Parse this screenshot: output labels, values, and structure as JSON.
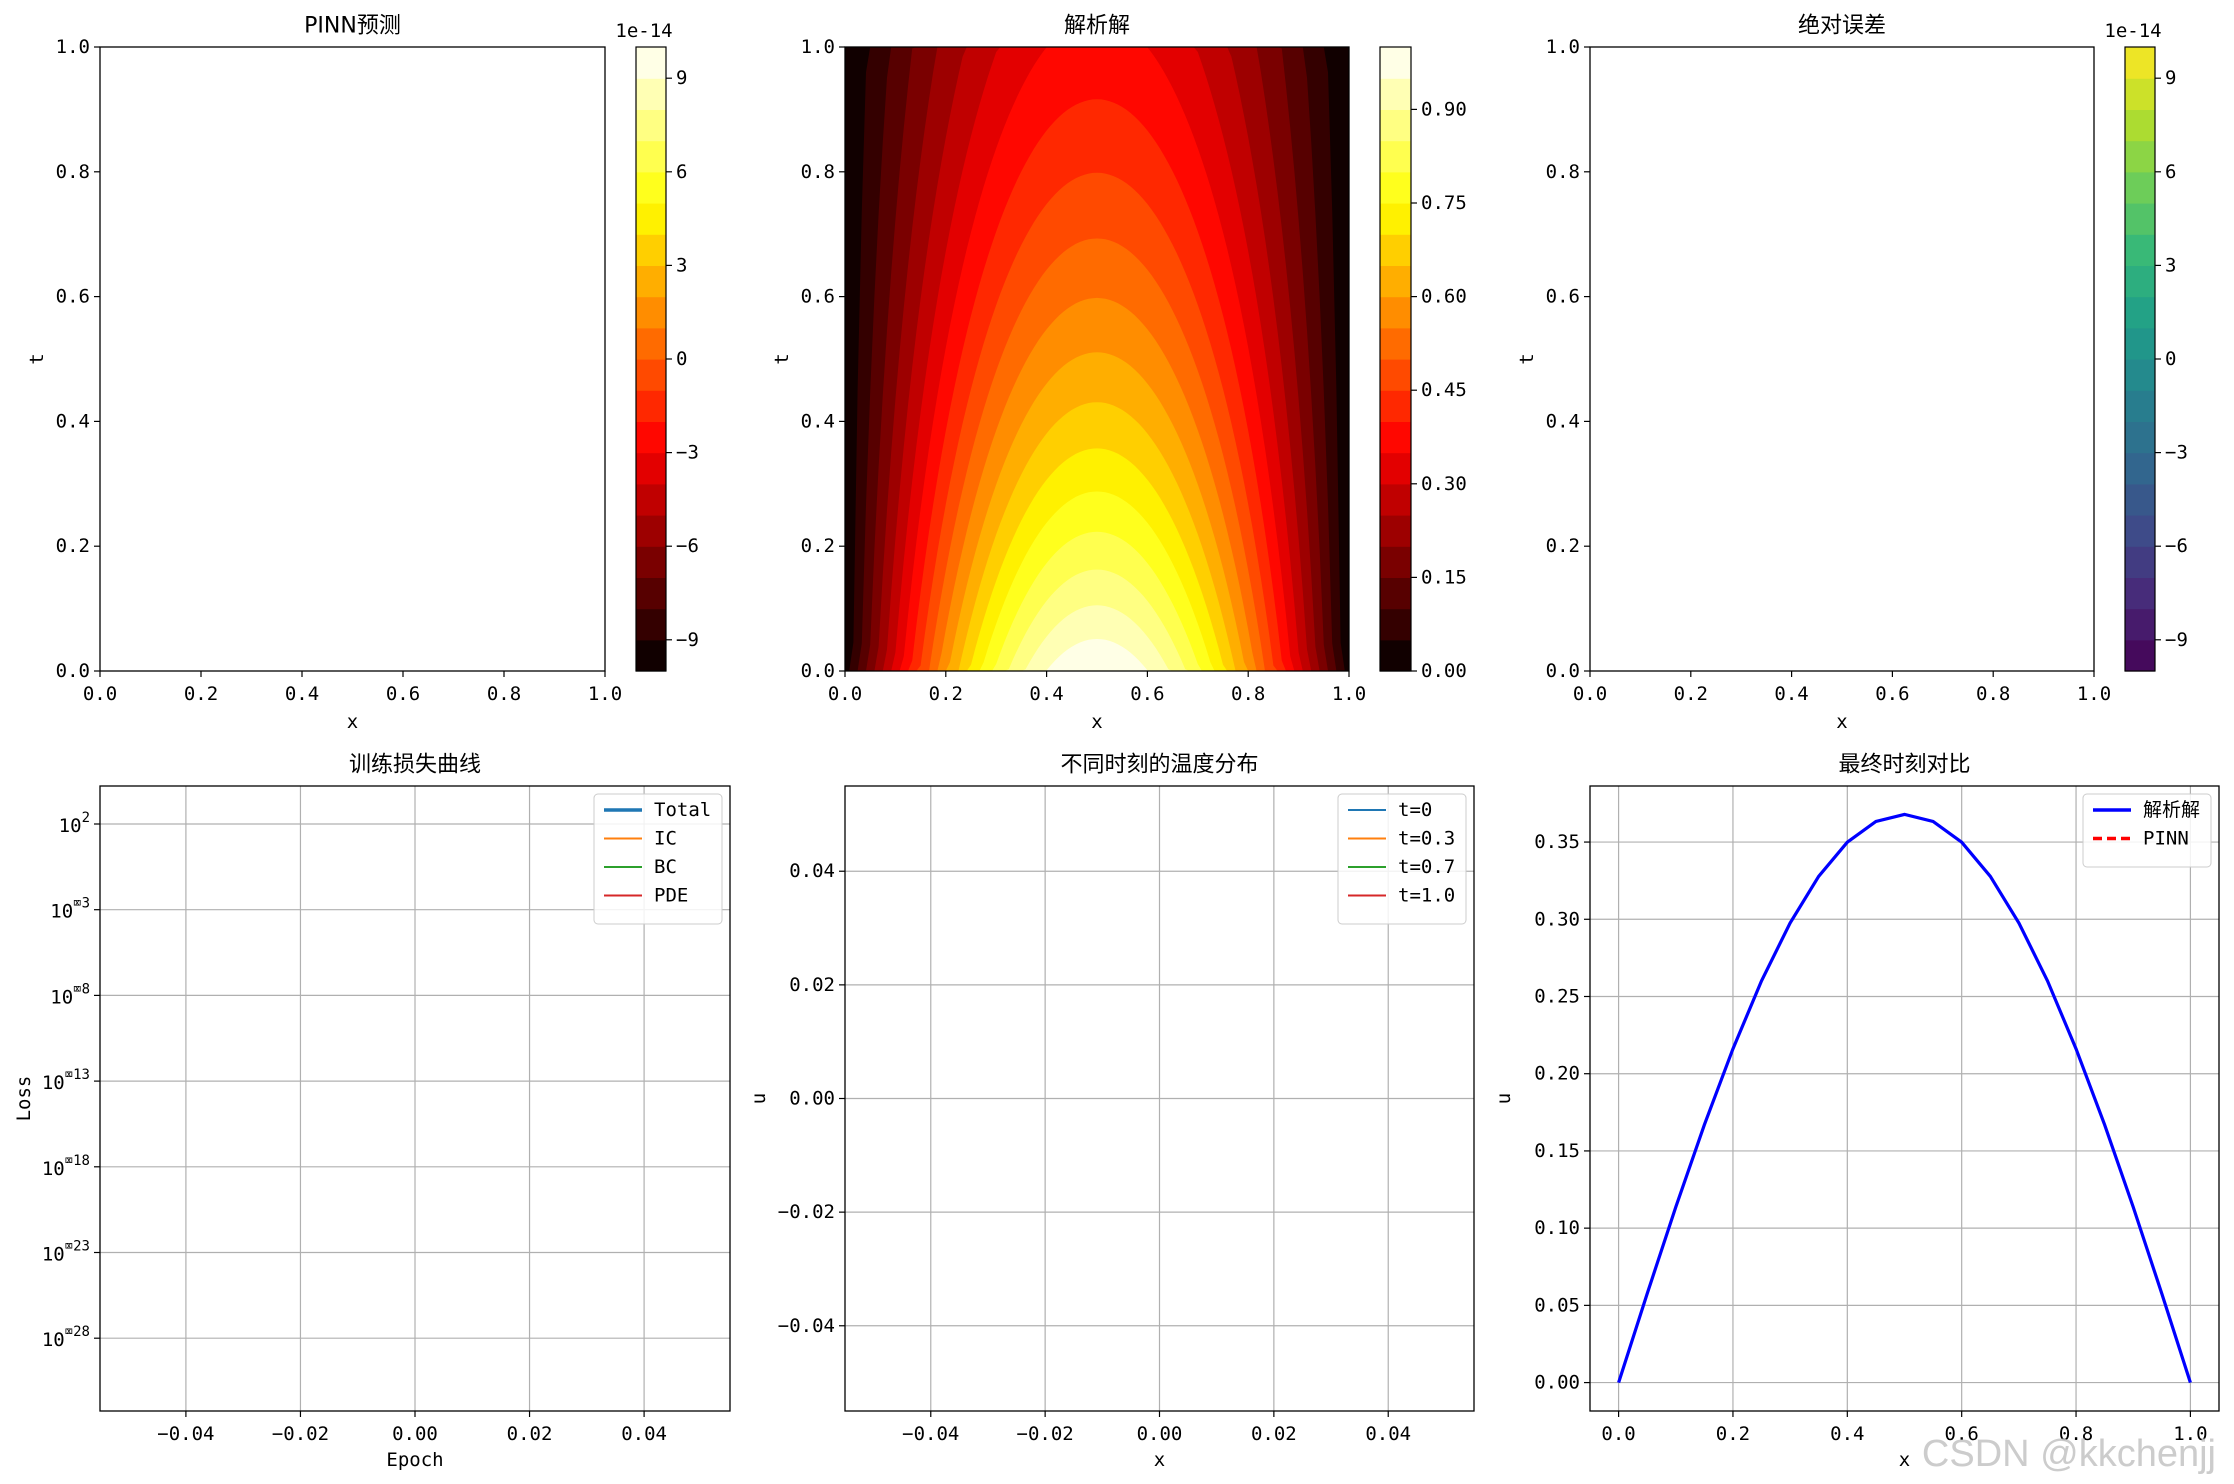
{
  "chart_data": [
    {
      "type": "heatmap",
      "title": "PINN预测",
      "xlabel": "x",
      "ylabel": "t",
      "xlim": [
        0,
        1
      ],
      "ylim": [
        0,
        1
      ],
      "xticks": [
        "0.0",
        "0.2",
        "0.4",
        "0.6",
        "0.8",
        "1.0"
      ],
      "yticks": [
        "0.0",
        "0.2",
        "0.4",
        "0.6",
        "0.8",
        "1.0"
      ],
      "colormap": "hot",
      "colorbar": {
        "offset": "1e-14",
        "ticks": [
          "9",
          "6",
          "3",
          "0",
          "−3",
          "−6",
          "−9"
        ],
        "tick_values": [
          9,
          6,
          3,
          0,
          -3,
          -6,
          -9
        ],
        "range": [
          -10,
          10
        ],
        "levels": 20
      },
      "field": "empty"
    },
    {
      "type": "heatmap",
      "title": "解析解",
      "xlabel": "x",
      "ylabel": "t",
      "xlim": [
        0,
        1
      ],
      "ylim": [
        0,
        1
      ],
      "xticks": [
        "0.0",
        "0.2",
        "0.4",
        "0.6",
        "0.8",
        "1.0"
      ],
      "yticks": [
        "0.0",
        "0.2",
        "0.4",
        "0.6",
        "0.8",
        "1.0"
      ],
      "colormap": "hot",
      "colorbar": {
        "offset": "",
        "ticks": [
          "0.90",
          "0.75",
          "0.60",
          "0.45",
          "0.30",
          "0.15",
          "0.00"
        ],
        "tick_values": [
          0.9,
          0.75,
          0.6,
          0.45,
          0.3,
          0.15,
          0.0
        ],
        "range": [
          0,
          1
        ],
        "levels": 20
      },
      "field": "u(x,t) = sin(πx)·exp(−t)"
    },
    {
      "type": "heatmap",
      "title": "绝对误差",
      "xlabel": "x",
      "ylabel": "t",
      "xlim": [
        0,
        1
      ],
      "ylim": [
        0,
        1
      ],
      "xticks": [
        "0.0",
        "0.2",
        "0.4",
        "0.6",
        "0.8",
        "1.0"
      ],
      "yticks": [
        "0.0",
        "0.2",
        "0.4",
        "0.6",
        "0.8",
        "1.0"
      ],
      "colormap": "viridis",
      "colorbar": {
        "offset": "1e-14",
        "ticks": [
          "9",
          "6",
          "3",
          "0",
          "−3",
          "−6",
          "−9"
        ],
        "tick_values": [
          9,
          6,
          3,
          0,
          -3,
          -6,
          -9
        ],
        "range": [
          -10,
          10
        ],
        "levels": 20
      },
      "field": "empty"
    },
    {
      "type": "line",
      "title": "训练损失曲线",
      "xlabel": "Epoch",
      "ylabel": "Loss",
      "xlim": [
        -0.055,
        0.055
      ],
      "xticks": [
        "−0.04",
        "−0.02",
        "0.00",
        "0.02",
        "0.04"
      ],
      "xtick_values": [
        -0.04,
        -0.02,
        0,
        0.02,
        0.04
      ],
      "yscale": "log",
      "yticks": [
        {
          "base": "10",
          "exp": "2"
        },
        {
          "base": "10",
          "exp": "⌧3"
        },
        {
          "base": "10",
          "exp": "⌧8"
        },
        {
          "base": "10",
          "exp": "⌧13"
        },
        {
          "base": "10",
          "exp": "⌧18"
        },
        {
          "base": "10",
          "exp": "⌧23"
        },
        {
          "base": "10",
          "exp": "⌧28"
        }
      ],
      "grid": true,
      "legend": "top-right",
      "series": [
        {
          "name": "Total",
          "color": "#1f77b4",
          "values": []
        },
        {
          "name": "IC",
          "color": "#ff7f0e",
          "values": []
        },
        {
          "name": "BC",
          "color": "#2ca02c",
          "values": []
        },
        {
          "name": "PDE",
          "color": "#d62728",
          "values": []
        }
      ]
    },
    {
      "type": "line",
      "title": "不同时刻的温度分布",
      "xlabel": "x",
      "ylabel": "u",
      "xlim": [
        -0.055,
        0.055
      ],
      "ylim": [
        -0.055,
        0.055
      ],
      "xticks": [
        "−0.04",
        "−0.02",
        "0.00",
        "0.02",
        "0.04"
      ],
      "xtick_values": [
        -0.04,
        -0.02,
        0,
        0.02,
        0.04
      ],
      "yticks": [
        "0.04",
        "0.02",
        "0.00",
        "−0.02",
        "−0.04"
      ],
      "ytick_values": [
        0.04,
        0.02,
        0,
        -0.02,
        -0.04
      ],
      "grid": true,
      "legend": "top-right",
      "series": [
        {
          "name": "t=0",
          "color": "#1f77b4",
          "values": []
        },
        {
          "name": "t=0.3",
          "color": "#ff7f0e",
          "values": []
        },
        {
          "name": "t=0.7",
          "color": "#2ca02c",
          "values": []
        },
        {
          "name": "t=1.0",
          "color": "#d62728",
          "values": []
        }
      ]
    },
    {
      "type": "line",
      "title": "最终时刻对比",
      "xlabel": "x",
      "ylabel": "u",
      "xlim": [
        -0.05,
        1.05
      ],
      "ylim": [
        -0.0184,
        0.3863
      ],
      "xticks": [
        "0.0",
        "0.2",
        "0.4",
        "0.6",
        "0.8",
        "1.0"
      ],
      "xtick_values": [
        0,
        0.2,
        0.4,
        0.6,
        0.8,
        1.0
      ],
      "yticks": [
        "0.35",
        "0.30",
        "0.25",
        "0.20",
        "0.15",
        "0.10",
        "0.05",
        "0.00"
      ],
      "ytick_values": [
        0.35,
        0.3,
        0.25,
        0.2,
        0.15,
        0.1,
        0.05,
        0.0
      ],
      "grid": true,
      "legend": "top-right",
      "series": [
        {
          "name": "解析解",
          "color": "#0000ff",
          "style": "solid",
          "x": [
            0,
            0.05,
            0.1,
            0.15,
            0.2,
            0.25,
            0.3,
            0.35,
            0.4,
            0.45,
            0.5,
            0.55,
            0.6,
            0.65,
            0.7,
            0.75,
            0.8,
            0.85,
            0.9,
            0.95,
            1.0
          ],
          "y": [
            0,
            0.0576,
            0.1137,
            0.167,
            0.2162,
            0.2601,
            0.2976,
            0.3278,
            0.3499,
            0.3633,
            0.3679,
            0.3633,
            0.3499,
            0.3278,
            0.2976,
            0.2601,
            0.2162,
            0.167,
            0.1137,
            0.0576,
            0
          ]
        },
        {
          "name": "PINN",
          "color": "#ff0000",
          "style": "dashed",
          "x": [],
          "y": []
        }
      ]
    }
  ],
  "watermark": "CSDN @kkchenjj"
}
